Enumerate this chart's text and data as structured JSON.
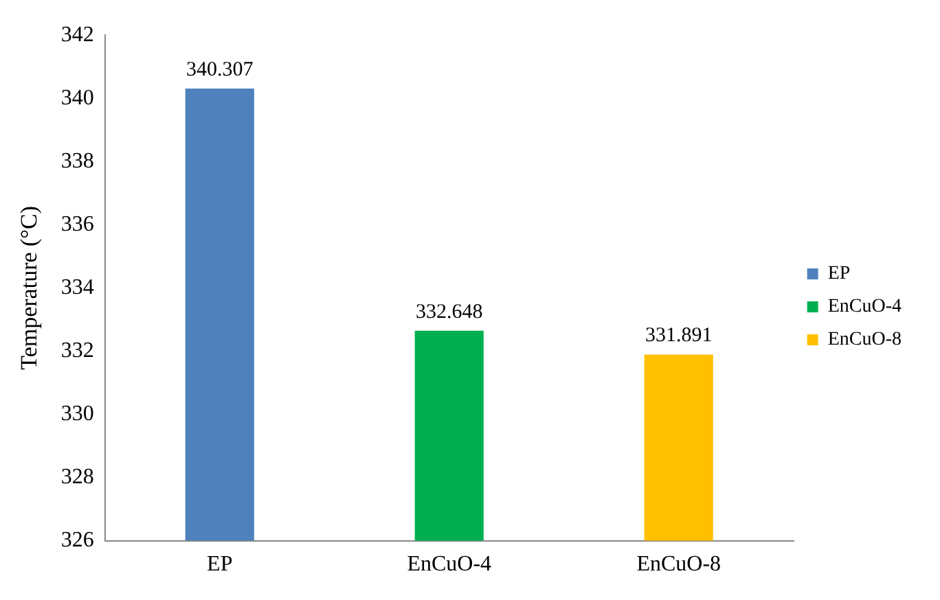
{
  "chart_data": {
    "type": "bar",
    "ylabel": "Temperature (°C)",
    "categories": [
      "EP",
      "EnCuO-4",
      "EnCuO-8"
    ],
    "series": [
      {
        "name": "EP",
        "color": "#4f81bd",
        "values": [
          340.307,
          null,
          null
        ]
      },
      {
        "name": "EnCuO-4",
        "color": "#00b050",
        "values": [
          null,
          332.648,
          null
        ]
      },
      {
        "name": "EnCuO-8",
        "color": "#ffc000",
        "values": [
          null,
          null,
          331.891
        ]
      }
    ],
    "ylim": [
      326,
      342
    ],
    "yticks": [
      326,
      328,
      330,
      332,
      334,
      336,
      338,
      340,
      342
    ],
    "grid": false,
    "legend": "right",
    "data_labels": true
  }
}
